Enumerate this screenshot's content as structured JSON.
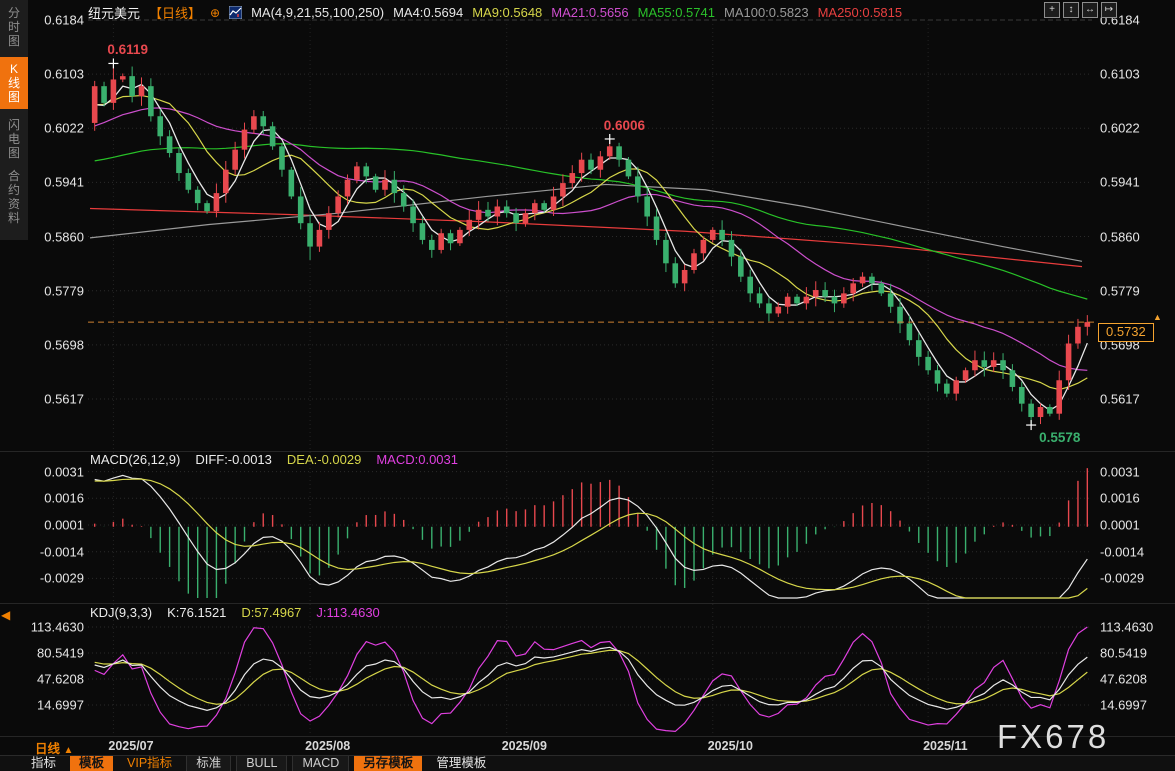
{
  "colors": {
    "background": "#0a0a0a",
    "sidebar_panel": "#1d1d1d",
    "accent_orange": "#f0720e",
    "up_red": "#e8484e",
    "down_green": "#3ab06e",
    "ma4_white": "#e8e8e8",
    "ma9_yellow": "#d6d64a",
    "ma21_magenta": "#cc4fcc",
    "ma55_green": "#28c128",
    "ma100_gray": "#9a9a9a",
    "ma250_red": "#e83c3c",
    "kdj_j_magenta": "#e040e0",
    "grid": "#2b2b2b",
    "current_price_orange": "#f5a430"
  },
  "sidebar": {
    "items": [
      {
        "name": "sidebar-item-time-chart",
        "label": "分时图",
        "active": false
      },
      {
        "name": "sidebar-item-kline-chart",
        "label": "K线图",
        "active": true
      },
      {
        "name": "sidebar-item-flash-chart",
        "label": "闪电图",
        "active": false
      },
      {
        "name": "sidebar-item-contract-info",
        "label": "合约资料",
        "active": false
      }
    ],
    "collapse_glyph": "◀"
  },
  "header": {
    "symbol": "纽元美元",
    "period_label": "【日线】",
    "plus_icon": "⊕",
    "ma_settings": "MA(4,9,21,55,100,250)",
    "ma_values": [
      {
        "label": "MA4:0.5694"
      },
      {
        "label": "MA9:0.5648"
      },
      {
        "label": "MA21:0.5656"
      },
      {
        "label": "MA55:0.5741"
      },
      {
        "label": "MA100:0.5823"
      },
      {
        "label": "MA250:0.5815"
      }
    ]
  },
  "toolbar": {
    "icons": [
      {
        "name": "crosshair-icon",
        "glyph": "+"
      },
      {
        "name": "zoom-vertical-icon",
        "glyph": "↕"
      },
      {
        "name": "zoom-horizontal-icon",
        "glyph": "↔"
      },
      {
        "name": "restore-view-icon",
        "glyph": "↦"
      }
    ]
  },
  "main_chart": {
    "price_axis_labels": [
      "0.6184",
      "0.6103",
      "0.6022",
      "0.5941",
      "0.5860",
      "0.5779",
      "0.5698",
      "0.5617"
    ],
    "annotations": [
      {
        "text": "0.6119",
        "index": 2,
        "price": 0.6119,
        "position": "above",
        "color": "#e8484e"
      },
      {
        "text": "0.6006",
        "index": 55,
        "price": 0.6006,
        "position": "above",
        "color": "#e8484e"
      },
      {
        "text": "0.5578",
        "index": 100,
        "price": 0.5578,
        "position": "below",
        "color": "#3ab06e"
      }
    ],
    "current_price": {
      "label": "0.5732",
      "value": 0.5732,
      "alert_glyph": "▲"
    }
  },
  "macd_panel": {
    "title": "MACD(26,12,9)",
    "diff_label": "DIFF:-0.0013",
    "dea_label": "DEA:-0.0029",
    "macd_label": "MACD:0.0031",
    "axis_labels": [
      "0.0031",
      "0.0016",
      "0.0001",
      "-0.0014",
      "-0.0029"
    ]
  },
  "kdj_panel": {
    "title": "KDJ(9,3,3)",
    "k_label": "K:76.1521",
    "d_label": "D:57.4967",
    "j_label": "J:113.4630",
    "axis_labels": [
      "113.4630",
      "80.5419",
      "47.6208",
      "14.6997"
    ]
  },
  "bottom": {
    "period": "日线",
    "period_up_glyph": "▲",
    "dates": [
      "2025/07",
      "2025/08",
      "2025/09",
      "2025/10",
      "2025/11"
    ],
    "tabs": [
      {
        "name": "tab-indicators",
        "label": "指标",
        "style": "plain"
      },
      {
        "name": "tab-templates",
        "label": "模板",
        "style": "active"
      },
      {
        "name": "tab-vip-indicators",
        "label": "VIP指标",
        "style": "vip"
      },
      {
        "name": "tab-standard",
        "label": "标准",
        "style": "boxed"
      },
      {
        "name": "tab-bull",
        "label": "BULL",
        "style": "boxed"
      },
      {
        "name": "tab-macd",
        "label": "MACD",
        "style": "boxed"
      },
      {
        "name": "tab-save-template",
        "label": "另存模板",
        "style": "active"
      },
      {
        "name": "tab-manage-template",
        "label": "管理模板",
        "style": "plain"
      }
    ],
    "watermark": "FX678"
  },
  "chart_data": {
    "type": "candlestick",
    "title": "纽元美元 日线 (NZD/USD daily)",
    "price_axis": [
      0.6184,
      0.6103,
      0.6022,
      0.5941,
      0.586,
      0.5779,
      0.5698,
      0.5617
    ],
    "x_axis_dates": [
      "2025/07",
      "2025/08",
      "2025/09",
      "2025/10",
      "2025/11"
    ],
    "month_tick_indices": [
      2,
      23,
      44,
      66,
      89
    ],
    "history_closes": [
      0.59,
      0.5915,
      0.593,
      0.5915,
      0.59,
      0.591,
      0.5925,
      0.5935,
      0.592,
      0.5905,
      0.5915,
      0.593,
      0.5945,
      0.593,
      0.5915,
      0.5925,
      0.594,
      0.595,
      0.5935,
      0.592,
      0.593,
      0.5945,
      0.596,
      0.5945,
      0.593,
      0.594,
      0.5952,
      0.5962,
      0.595,
      0.5938,
      0.5946,
      0.5956,
      0.5966,
      0.5954,
      0.5942,
      0.595,
      0.596,
      0.597,
      0.5958,
      0.5946,
      0.5956,
      0.5968,
      0.598,
      0.5992,
      0.6004,
      0.5992,
      0.6004,
      0.6016,
      0.6028,
      0.6016,
      0.6028,
      0.604,
      0.6052,
      0.604,
      0.6052,
      0.6064,
      0.6076,
      0.6064,
      0.605,
      0.603
    ],
    "closes": [
      0.6085,
      0.606,
      0.6095,
      0.61,
      0.607,
      0.6085,
      0.604,
      0.601,
      0.5985,
      0.5955,
      0.593,
      0.591,
      0.5898,
      0.5925,
      0.596,
      0.599,
      0.602,
      0.604,
      0.6025,
      0.5995,
      0.596,
      0.592,
      0.588,
      0.5845,
      0.587,
      0.5895,
      0.592,
      0.5945,
      0.5965,
      0.595,
      0.593,
      0.5945,
      0.5925,
      0.5905,
      0.588,
      0.5855,
      0.584,
      0.5865,
      0.585,
      0.587,
      0.5885,
      0.59,
      0.589,
      0.5905,
      0.5895,
      0.588,
      0.5895,
      0.591,
      0.59,
      0.592,
      0.594,
      0.5955,
      0.5975,
      0.596,
      0.598,
      0.5995,
      0.5975,
      0.595,
      0.592,
      0.589,
      0.5855,
      0.582,
      0.579,
      0.581,
      0.5835,
      0.5855,
      0.587,
      0.5855,
      0.583,
      0.58,
      0.5775,
      0.576,
      0.5745,
      0.5755,
      0.577,
      0.576,
      0.577,
      0.578,
      0.577,
      0.576,
      0.5775,
      0.579,
      0.58,
      0.579,
      0.5775,
      0.5755,
      0.573,
      0.5705,
      0.568,
      0.566,
      0.564,
      0.5625,
      0.5645,
      0.566,
      0.5675,
      0.5665,
      0.5675,
      0.566,
      0.5635,
      0.561,
      0.559,
      0.5605,
      0.5595,
      0.5645,
      0.57,
      0.5725,
      0.5732
    ],
    "wick_overrides": {
      "2": {
        "high": 0.6119
      },
      "23": {
        "low": 0.5825
      },
      "55": {
        "high": 0.6006
      },
      "100": {
        "low": 0.5578
      }
    },
    "high_marker_1": 0.6119,
    "high_marker_2": 0.6006,
    "low_marker": 0.5578,
    "current_price": 0.5732,
    "ma_current": {
      "ma4": 0.5694,
      "ma9": 0.5648,
      "ma21": 0.5656,
      "ma55": 0.5741,
      "ma100": 0.5823,
      "ma250": 0.5815
    },
    "ma100_path": [
      [
        0,
        0.5858
      ],
      [
        0.12,
        0.5878
      ],
      [
        0.25,
        0.5895
      ],
      [
        0.4,
        0.592
      ],
      [
        0.52,
        0.5938
      ],
      [
        0.62,
        0.593
      ],
      [
        0.72,
        0.5905
      ],
      [
        0.82,
        0.5875
      ],
      [
        0.92,
        0.5845
      ],
      [
        1,
        0.5823
      ]
    ],
    "ma250_path": [
      [
        0,
        0.5902
      ],
      [
        0.2,
        0.5893
      ],
      [
        0.4,
        0.5882
      ],
      [
        0.6,
        0.5868
      ],
      [
        0.8,
        0.5846
      ],
      [
        1,
        0.5815
      ]
    ],
    "macd": {
      "params": [
        26,
        12,
        9
      ],
      "diff": -0.0013,
      "dea": -0.0029,
      "macd": 0.0031,
      "axis": [
        0.0031,
        0.0016,
        0.0001,
        -0.0014,
        -0.0029
      ]
    },
    "kdj": {
      "params": [
        9,
        3,
        3
      ],
      "k": 76.1521,
      "d": 57.4967,
      "j": 113.463,
      "axis": [
        113.463,
        80.5419,
        47.6208,
        14.6997
      ]
    }
  }
}
